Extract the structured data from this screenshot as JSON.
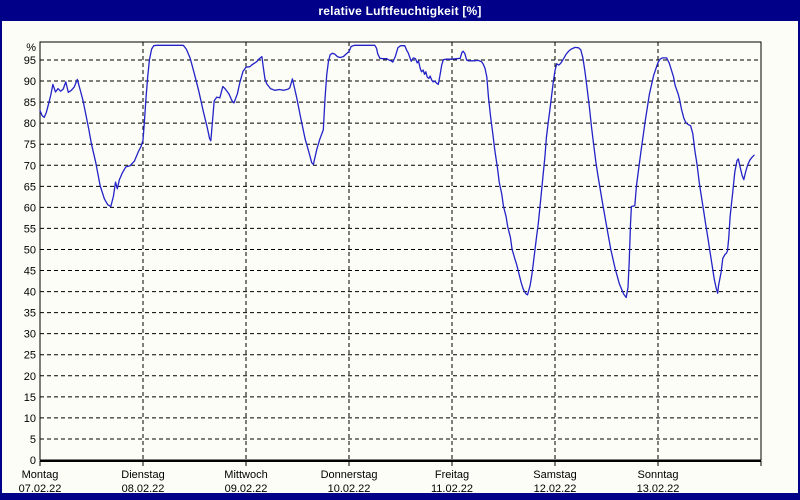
{
  "window": {
    "title": "relative Luftfeuchtigkeit [%]",
    "titlebar_color": "#000089",
    "title_text_color": "#ffffff",
    "content_bg": "#fcfdf6"
  },
  "chart_data": {
    "type": "line",
    "title": "relative Luftfeuchtigkeit [%]",
    "grid": {
      "style": "dashed",
      "color": "#000000",
      "visible": true
    },
    "frame_color": "#000000",
    "y_axis": {
      "unit_label": "%",
      "min": 0,
      "max": 95,
      "tick_step": 5,
      "tick_labels": [
        "95",
        "90",
        "85",
        "80",
        "75",
        "70",
        "65",
        "60",
        "55",
        "50",
        "45",
        "40",
        "35",
        "30",
        "25",
        "20",
        "15",
        "10",
        "5",
        "0"
      ]
    },
    "x_axis": {
      "hours_total": 168,
      "days": [
        {
          "label": "Montag",
          "date": "07.02.22"
        },
        {
          "label": "Dienstag",
          "date": "08.02.22"
        },
        {
          "label": "Mittwoch",
          "date": "09.02.22"
        },
        {
          "label": "Donnerstag",
          "date": "10.02.22"
        },
        {
          "label": "Freitag",
          "date": "11.02.22"
        },
        {
          "label": "Samstag",
          "date": "12.02.22"
        },
        {
          "label": "Sonntag",
          "date": "13.02.22"
        }
      ]
    },
    "series": [
      {
        "name": "relative Luftfeuchtigkeit",
        "color": "#2323c8",
        "points": [
          [
            0,
            83
          ],
          [
            0.5,
            81.8
          ],
          [
            1,
            81.4
          ],
          [
            1.5,
            82.6
          ],
          [
            2,
            84.6
          ],
          [
            2.5,
            86.6
          ],
          [
            3,
            89.2
          ],
          [
            3.6,
            87.4
          ],
          [
            4.2,
            88.2
          ],
          [
            4.8,
            87.6
          ],
          [
            5.4,
            88.1
          ],
          [
            6,
            89.8
          ],
          [
            6.6,
            87.3
          ],
          [
            7.3,
            87.8
          ],
          [
            8,
            88.6
          ],
          [
            8.7,
            90.4
          ],
          [
            9.4,
            87.8
          ],
          [
            10,
            85.5
          ],
          [
            10.7,
            82
          ],
          [
            11.4,
            78.4
          ],
          [
            12,
            75
          ],
          [
            13,
            70.6
          ],
          [
            14,
            65.2
          ],
          [
            15,
            62
          ],
          [
            15.8,
            60.6
          ],
          [
            16.5,
            60.2
          ],
          [
            17.1,
            62.6
          ],
          [
            17.6,
            66
          ],
          [
            18,
            64.4
          ],
          [
            18.5,
            66.6
          ],
          [
            19.2,
            68.2
          ],
          [
            20,
            69.6
          ],
          [
            21,
            69.9
          ],
          [
            22,
            71
          ],
          [
            23,
            73.4
          ],
          [
            23.6,
            74.6
          ],
          [
            24,
            76
          ],
          [
            24.3,
            80
          ],
          [
            24.7,
            86
          ],
          [
            25.1,
            91
          ],
          [
            25.5,
            95
          ],
          [
            26,
            97.6
          ],
          [
            26.5,
            98.4
          ],
          [
            27.2,
            98.5
          ],
          [
            33.4,
            98.5
          ],
          [
            34.1,
            97.6
          ],
          [
            35,
            95.4
          ],
          [
            36,
            91.6
          ],
          [
            37,
            87.6
          ],
          [
            38,
            83
          ],
          [
            39,
            78.8
          ],
          [
            39.5,
            76.4
          ],
          [
            39.8,
            75.8
          ],
          [
            40.2,
            80.5
          ],
          [
            40.6,
            85.3
          ],
          [
            41.2,
            86.2
          ],
          [
            41.9,
            86
          ],
          [
            42.6,
            88.7
          ],
          [
            43.2,
            88.1
          ],
          [
            44,
            87
          ],
          [
            44.7,
            85.4
          ],
          [
            45.2,
            84.8
          ],
          [
            46,
            87
          ],
          [
            46.6,
            89.8
          ],
          [
            47.3,
            92.3
          ],
          [
            48,
            93.3
          ],
          [
            48.9,
            93.4
          ],
          [
            49.3,
            93.8
          ],
          [
            50.5,
            94.6
          ],
          [
            51.1,
            95.3
          ],
          [
            51.7,
            95.8
          ],
          [
            52,
            93.4
          ],
          [
            52.4,
            90.6
          ],
          [
            52.8,
            89.4
          ],
          [
            53.7,
            88.2
          ],
          [
            54.7,
            87.8
          ],
          [
            55.8,
            88
          ],
          [
            56.8,
            87.8
          ],
          [
            57.8,
            88.1
          ],
          [
            58.2,
            88.4
          ],
          [
            58.8,
            90.5
          ],
          [
            59.8,
            86.2
          ],
          [
            60.8,
            81
          ],
          [
            61.8,
            76.2
          ],
          [
            62.8,
            72.6
          ],
          [
            63.3,
            70.6
          ],
          [
            63.7,
            70.2
          ],
          [
            64.5,
            73.8
          ],
          [
            65.2,
            76.2
          ],
          [
            66,
            78.4
          ],
          [
            66.4,
            85.8
          ],
          [
            66.8,
            91.4
          ],
          [
            67.2,
            94.6
          ],
          [
            67.6,
            96.2
          ],
          [
            68.1,
            96.6
          ],
          [
            68.7,
            96.4
          ],
          [
            69.3,
            95.8
          ],
          [
            69.9,
            95.6
          ],
          [
            70.7,
            95.8
          ],
          [
            71.3,
            96.4
          ],
          [
            72,
            97
          ],
          [
            72.5,
            98.2
          ],
          [
            73.3,
            98.5
          ],
          [
            78,
            98.5
          ],
          [
            78.4,
            97.8
          ],
          [
            78.7,
            96.4
          ],
          [
            79.2,
            95.4
          ],
          [
            79.8,
            95.3
          ],
          [
            80.8,
            95.3
          ],
          [
            81.3,
            95
          ],
          [
            81.8,
            94.8
          ],
          [
            82.2,
            94.5
          ],
          [
            82.8,
            95.9
          ],
          [
            83.4,
            97.9
          ],
          [
            84,
            98.4
          ],
          [
            85,
            98.4
          ],
          [
            85.4,
            97.4
          ],
          [
            85.8,
            96.7
          ],
          [
            86.5,
            94.7
          ],
          [
            87,
            95.5
          ],
          [
            87.5,
            95.3
          ],
          [
            87.9,
            94.3
          ],
          [
            88.2,
            94.8
          ],
          [
            88.6,
            93
          ],
          [
            88.9,
            92.2
          ],
          [
            89.3,
            92.6
          ],
          [
            89.6,
            91.6
          ],
          [
            89.9,
            92.2
          ],
          [
            90.2,
            91
          ],
          [
            90.6,
            90.6
          ],
          [
            90.9,
            91.2
          ],
          [
            91.3,
            90.2
          ],
          [
            91.6,
            89.8
          ],
          [
            92,
            90
          ],
          [
            92.4,
            89.5
          ],
          [
            92.8,
            89.2
          ],
          [
            93.2,
            91.4
          ],
          [
            93.6,
            93.8
          ],
          [
            94,
            95.1
          ],
          [
            94.7,
            95.2
          ],
          [
            96,
            95.2
          ],
          [
            97.1,
            95.3
          ],
          [
            97.9,
            95.4
          ],
          [
            98.3,
            96.8
          ],
          [
            98.6,
            97.1
          ],
          [
            99,
            96.5
          ],
          [
            99.4,
            95
          ],
          [
            99.8,
            94.8
          ],
          [
            101,
            94.8
          ],
          [
            102.1,
            94.9
          ],
          [
            102.9,
            94.6
          ],
          [
            103.3,
            94
          ],
          [
            103.7,
            93
          ],
          [
            104.1,
            91
          ],
          [
            104.5,
            86.1
          ],
          [
            105,
            81.5
          ],
          [
            105.5,
            77.5
          ],
          [
            106,
            73.4
          ],
          [
            106.6,
            69.3
          ],
          [
            107,
            66
          ],
          [
            107.6,
            63.1
          ],
          [
            108,
            60.2
          ],
          [
            108.6,
            57.8
          ],
          [
            109,
            55.3
          ],
          [
            109.6,
            52.9
          ],
          [
            110,
            50
          ],
          [
            110.6,
            47.9
          ],
          [
            111.1,
            46.3
          ],
          [
            111.6,
            44.2
          ],
          [
            112.1,
            42.2
          ],
          [
            112.6,
            40.6
          ],
          [
            113.2,
            39.5
          ],
          [
            113.6,
            39.2
          ],
          [
            114.2,
            41.4
          ],
          [
            114.6,
            43.9
          ],
          [
            114.9,
            46.3
          ],
          [
            115.3,
            49.6
          ],
          [
            115.7,
            52.9
          ],
          [
            116.1,
            56.2
          ],
          [
            116.5,
            60.2
          ],
          [
            116.9,
            64.3
          ],
          [
            117.3,
            68.4
          ],
          [
            117.7,
            72.5
          ],
          [
            118,
            76.6
          ],
          [
            118.4,
            79.9
          ],
          [
            118.8,
            83.2
          ],
          [
            119.2,
            86.5
          ],
          [
            119.6,
            89.8
          ],
          [
            120,
            92.5
          ],
          [
            120.4,
            94.1
          ],
          [
            120.9,
            93.8
          ],
          [
            121.4,
            94.3
          ],
          [
            122,
            95.3
          ],
          [
            122.5,
            96.2
          ],
          [
            123,
            96.9
          ],
          [
            123.5,
            97.4
          ],
          [
            124,
            97.7
          ],
          [
            124.7,
            98
          ],
          [
            125.5,
            97.9
          ],
          [
            126,
            97.4
          ],
          [
            126.5,
            95.5
          ],
          [
            127,
            92.2
          ],
          [
            127.5,
            88.1
          ],
          [
            128,
            84
          ],
          [
            128.5,
            79.1
          ],
          [
            129,
            75
          ],
          [
            129.5,
            70.9
          ],
          [
            130,
            67.6
          ],
          [
            131,
            61.5
          ],
          [
            132,
            55.7
          ],
          [
            133,
            50
          ],
          [
            134,
            45.5
          ],
          [
            135,
            41.8
          ],
          [
            136,
            39.4
          ],
          [
            136.6,
            38.6
          ],
          [
            137,
            41
          ],
          [
            137.3,
            47
          ],
          [
            137.6,
            56
          ],
          [
            137.8,
            60.2
          ],
          [
            138.6,
            60.4
          ],
          [
            139,
            65.2
          ],
          [
            140,
            73
          ],
          [
            141,
            80.3
          ],
          [
            142,
            86.9
          ],
          [
            143,
            91.4
          ],
          [
            144,
            94.4
          ],
          [
            144.5,
            95.2
          ],
          [
            145,
            95.5
          ],
          [
            146,
            95.5
          ],
          [
            146.6,
            94.3
          ],
          [
            147,
            93
          ],
          [
            147.6,
            91
          ],
          [
            148,
            88.9
          ],
          [
            148.7,
            86.9
          ],
          [
            149,
            85.7
          ],
          [
            149.5,
            83.2
          ],
          [
            150,
            81.2
          ],
          [
            150.5,
            80.1
          ],
          [
            151,
            79.7
          ],
          [
            151.6,
            79.4
          ],
          [
            152.1,
            77.5
          ],
          [
            152.6,
            73.4
          ],
          [
            153.1,
            70.1
          ],
          [
            153.6,
            66
          ],
          [
            154.1,
            62.7
          ],
          [
            154.6,
            59.4
          ],
          [
            155.1,
            56.1
          ],
          [
            155.6,
            52.9
          ],
          [
            156.1,
            49.6
          ],
          [
            156.6,
            46.3
          ],
          [
            157.1,
            43
          ],
          [
            157.6,
            40.6
          ],
          [
            157.9,
            39.6
          ],
          [
            158.1,
            41.4
          ],
          [
            158.7,
            44.6
          ],
          [
            159.1,
            47.9
          ],
          [
            159.6,
            48.8
          ],
          [
            160,
            49.2
          ],
          [
            160.2,
            49.7
          ],
          [
            160.5,
            52.9
          ],
          [
            160.8,
            57.8
          ],
          [
            161.4,
            63.5
          ],
          [
            161.9,
            68.4
          ],
          [
            162.4,
            71.1
          ],
          [
            162.7,
            71.5
          ],
          [
            163.2,
            69.3
          ],
          [
            163.6,
            67.6
          ],
          [
            164,
            66.6
          ],
          [
            164.4,
            68.4
          ],
          [
            164.9,
            70.1
          ],
          [
            165.4,
            71.2
          ],
          [
            165.9,
            71.9
          ],
          [
            166.4,
            72.4
          ]
        ]
      }
    ]
  }
}
